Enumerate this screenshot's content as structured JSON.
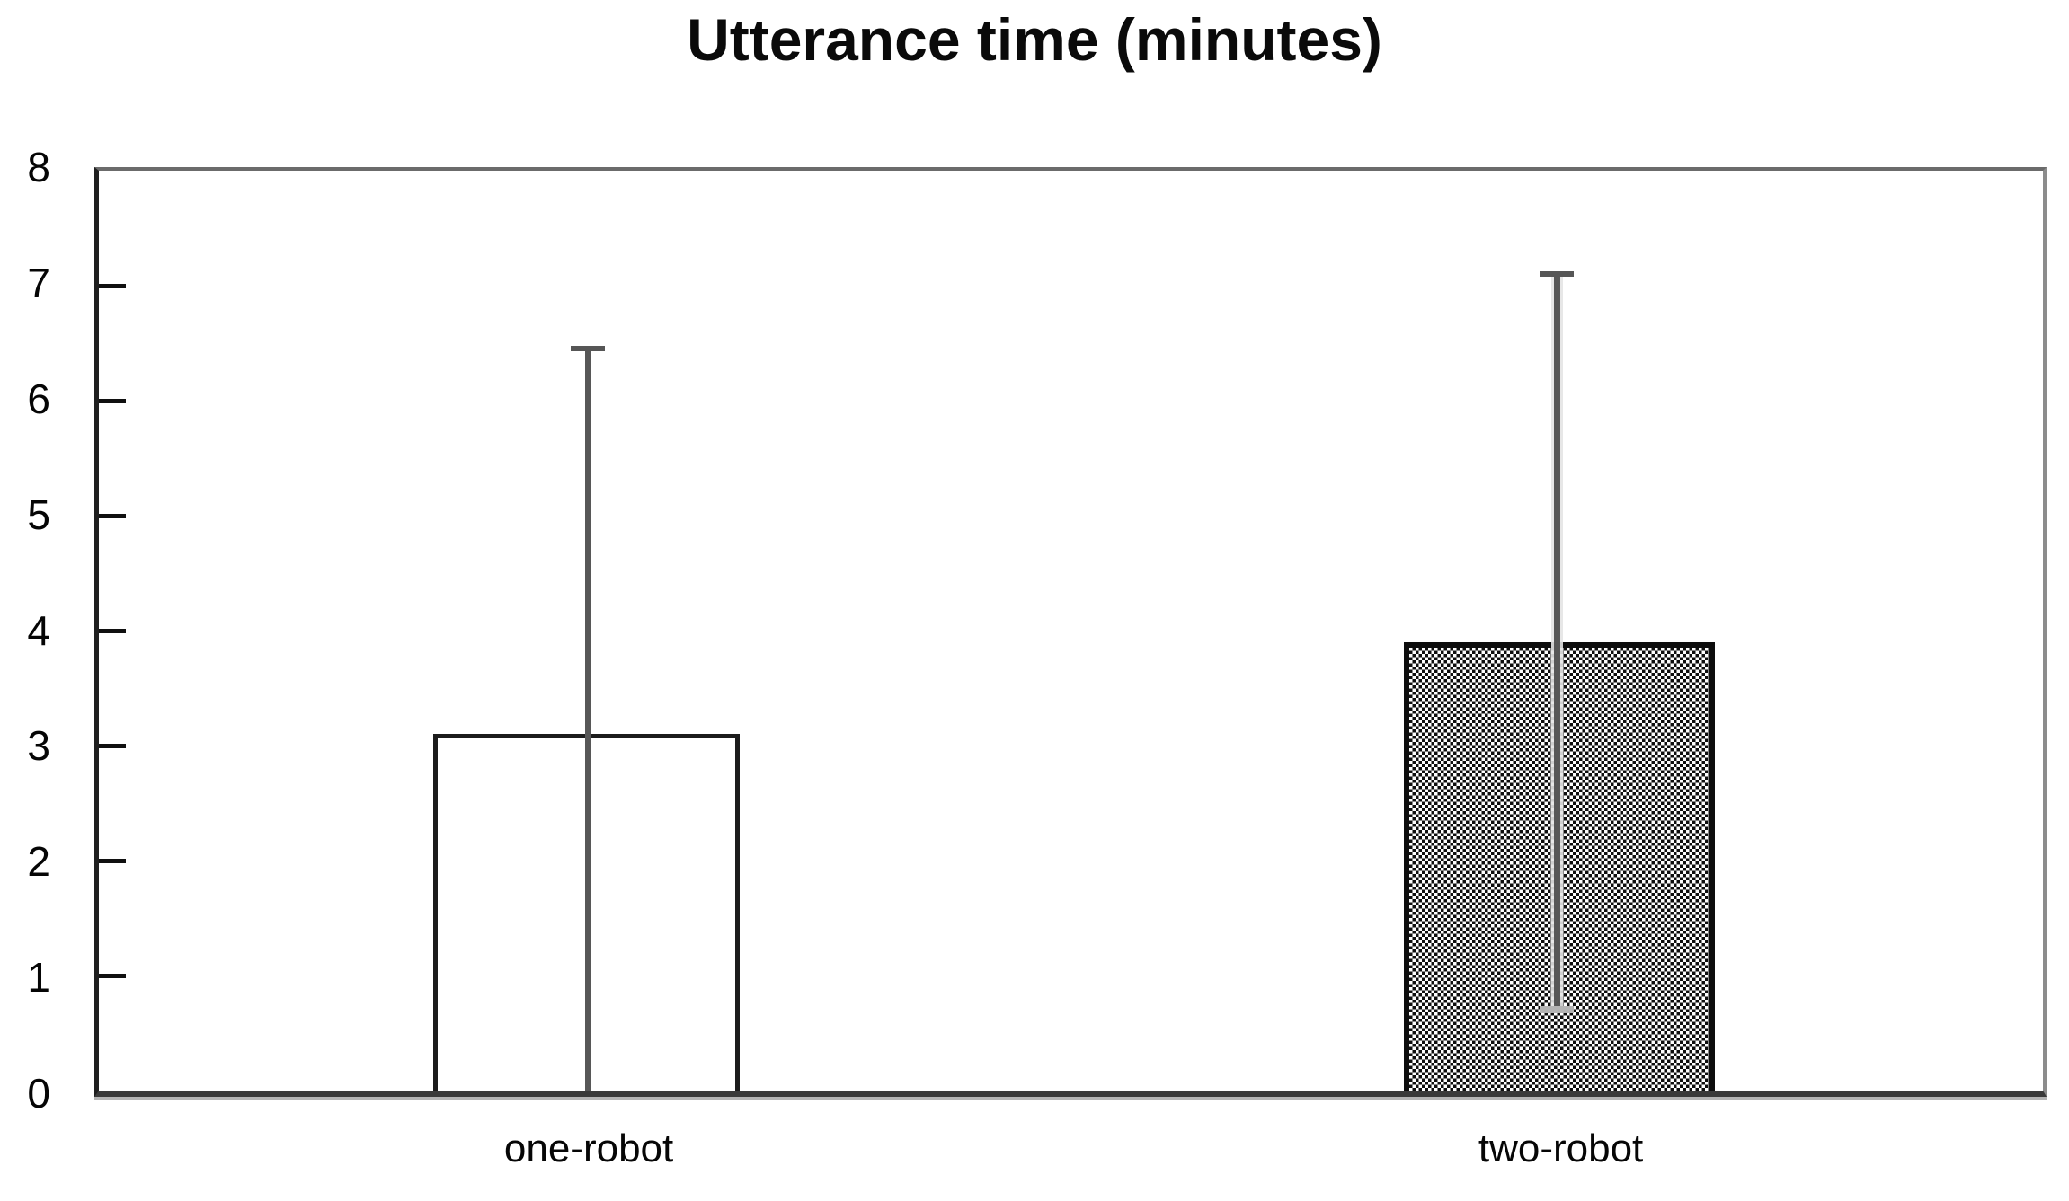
{
  "chart_data": {
    "type": "bar",
    "title": "Utterance time (minutes)",
    "categories": [
      "one-robot",
      "two-robot"
    ],
    "series": [
      {
        "name": "utterance-time-minutes",
        "values": [
          3.1,
          3.9
        ],
        "error_upper": [
          6.45,
          7.1
        ],
        "error_lower": [
          0,
          0.7
        ]
      }
    ],
    "xlabel": "",
    "ylabel": "",
    "ylim": [
      0,
      8
    ],
    "ytick_step": 1,
    "ytick_labels": [
      "8",
      "7",
      "6",
      "5",
      "4",
      "3",
      "2",
      "1",
      "0"
    ],
    "grid": false,
    "legend": "none",
    "bar_styles": [
      "white-fill-black-border",
      "black-white-checkerboard"
    ],
    "colors": {
      "background": "#ffffff",
      "text": "#000000",
      "y_axis": "#1f1f1f",
      "frame": "#8c8c8c",
      "baseline": "#3a3a3a",
      "tick": "#101010",
      "error_bar": "#575757",
      "error_cap_lower": "#b4b4b4",
      "bar_border": "#0d0d0d"
    }
  }
}
